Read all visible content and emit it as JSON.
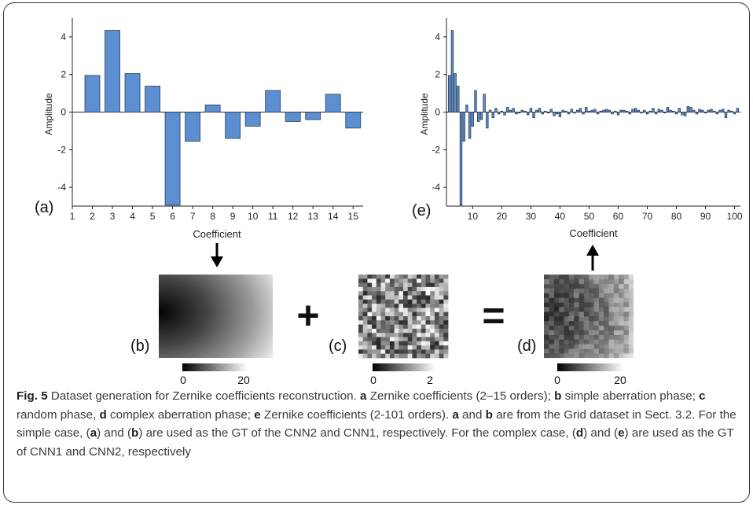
{
  "figure": {
    "colors": {
      "bar": "#5b8fd1",
      "bar_stroke": "#2d3e55",
      "axis": "#222222",
      "caption_label": "#d23a1c"
    },
    "panels": {
      "a": {
        "label": "(a)"
      },
      "b": {
        "label": "(b)",
        "colorbar_min": "0",
        "colorbar_max": "20"
      },
      "c": {
        "label": "(c)",
        "colorbar_min": "0",
        "colorbar_max": "2"
      },
      "d": {
        "label": "(d)",
        "colorbar_min": "0",
        "colorbar_max": "20"
      },
      "e": {
        "label": "(e)"
      }
    },
    "operators": {
      "plus": "+",
      "equals": "="
    },
    "arrows": {
      "down": "arrow-down-icon",
      "up": "arrow-up-icon"
    }
  },
  "chart_data": [
    {
      "type": "bar",
      "panel": "a",
      "xlabel": "Coefficient",
      "ylabel": "Amplitude",
      "x": [
        2,
        3,
        4,
        5,
        6,
        7,
        8,
        9,
        10,
        11,
        12,
        13,
        14,
        15
      ],
      "values": [
        1.95,
        4.35,
        2.05,
        1.38,
        -4.95,
        -1.55,
        0.38,
        -1.4,
        -0.75,
        1.15,
        -0.5,
        -0.4,
        0.95,
        -0.85
      ],
      "xlim": [
        1,
        15.5
      ],
      "ylim": [
        -5,
        5
      ],
      "xticks": [
        "1",
        "2",
        "3",
        "4",
        "5",
        "6",
        "7",
        "8",
        "9",
        "10",
        "11",
        "12",
        "13",
        "14",
        "15"
      ],
      "yticks": [
        "4",
        "2",
        "0",
        "-2",
        "-4"
      ]
    },
    {
      "type": "bar",
      "panel": "e",
      "xlabel": "Coefficient",
      "ylabel": "Amplitude",
      "x_start": 2,
      "x_end": 101,
      "values": [
        1.95,
        4.35,
        2.05,
        1.38,
        -4.95,
        -1.55,
        0.38,
        -1.4,
        -0.75,
        1.15,
        -0.5,
        -0.4,
        0.95,
        -0.85,
        0.1,
        -0.3,
        0.2,
        -0.1,
        0.05,
        -0.15,
        0.25,
        0.1,
        0.2,
        -0.1,
        -0.05,
        0.1,
        0.05,
        -0.15,
        0.2,
        -0.3,
        0.1,
        0.2,
        -0.1,
        0.05,
        -0.05,
        0.15,
        -0.2,
        -0.1,
        -0.25,
        0.1,
        0.05,
        -0.1,
        0.15,
        -0.05,
        0.1,
        0.2,
        -0.1,
        0.25,
        0.05,
        0.1,
        0.15,
        -0.1,
        0.05,
        0.1,
        0.15,
        0.1,
        -0.1,
        0.05,
        -0.15,
        0.1,
        0.1,
        0.05,
        -0.1,
        0.15,
        0.2,
        0.1,
        -0.05,
        0.1,
        -0.1,
        0.05,
        0.2,
        -0.1,
        0.15,
        0.1,
        -0.05,
        0.25,
        0.1,
        0.05,
        -0.1,
        0.2,
        -0.15,
        -0.2,
        0.3,
        0.25,
        0.1,
        -0.1,
        0.15,
        0.1,
        -0.05,
        0.1,
        0.15,
        0.05,
        -0.1,
        0.1,
        0.15,
        -0.3,
        0.1,
        0.05,
        -0.1,
        0.2
      ],
      "xlim": [
        1,
        102
      ],
      "ylim": [
        -5,
        5
      ],
      "xticks": [
        "10",
        "20",
        "30",
        "40",
        "50",
        "60",
        "70",
        "80",
        "90",
        "100"
      ],
      "yticks": [
        "4",
        "2",
        "0",
        "-2",
        "-4"
      ]
    }
  ],
  "caption": {
    "fig_label": "Fig. 5",
    "text_1": " Dataset generation for Zernike coefficients reconstruction. ",
    "a": "a",
    "t_a": " Zernike coefficients (2–15 orders); ",
    "b": "b",
    "t_b": " simple aberration phase; ",
    "c": "c",
    "t_c": " random phase, ",
    "d": "d",
    "t_d": " complex aberration phase; ",
    "e": "e",
    "t_e": " Zernike coefficients (2-101 orders). ",
    "a2": "a",
    "t_and": " and ",
    "b2": "b",
    "t_grid": " are from the Grid dataset in Sect. 3.2. For the simple case, (",
    "a3": "a",
    "t_and2": ") and (",
    "b3": "b",
    "t_gt1": ") are used as the GT of the CNN2 and CNN1, respectively. For the complex case, (",
    "d2": "d",
    "t_and3": ") and (",
    "e2": "e",
    "t_gt2": ") are used as the GT of CNN1 and CNN2, respectively"
  }
}
